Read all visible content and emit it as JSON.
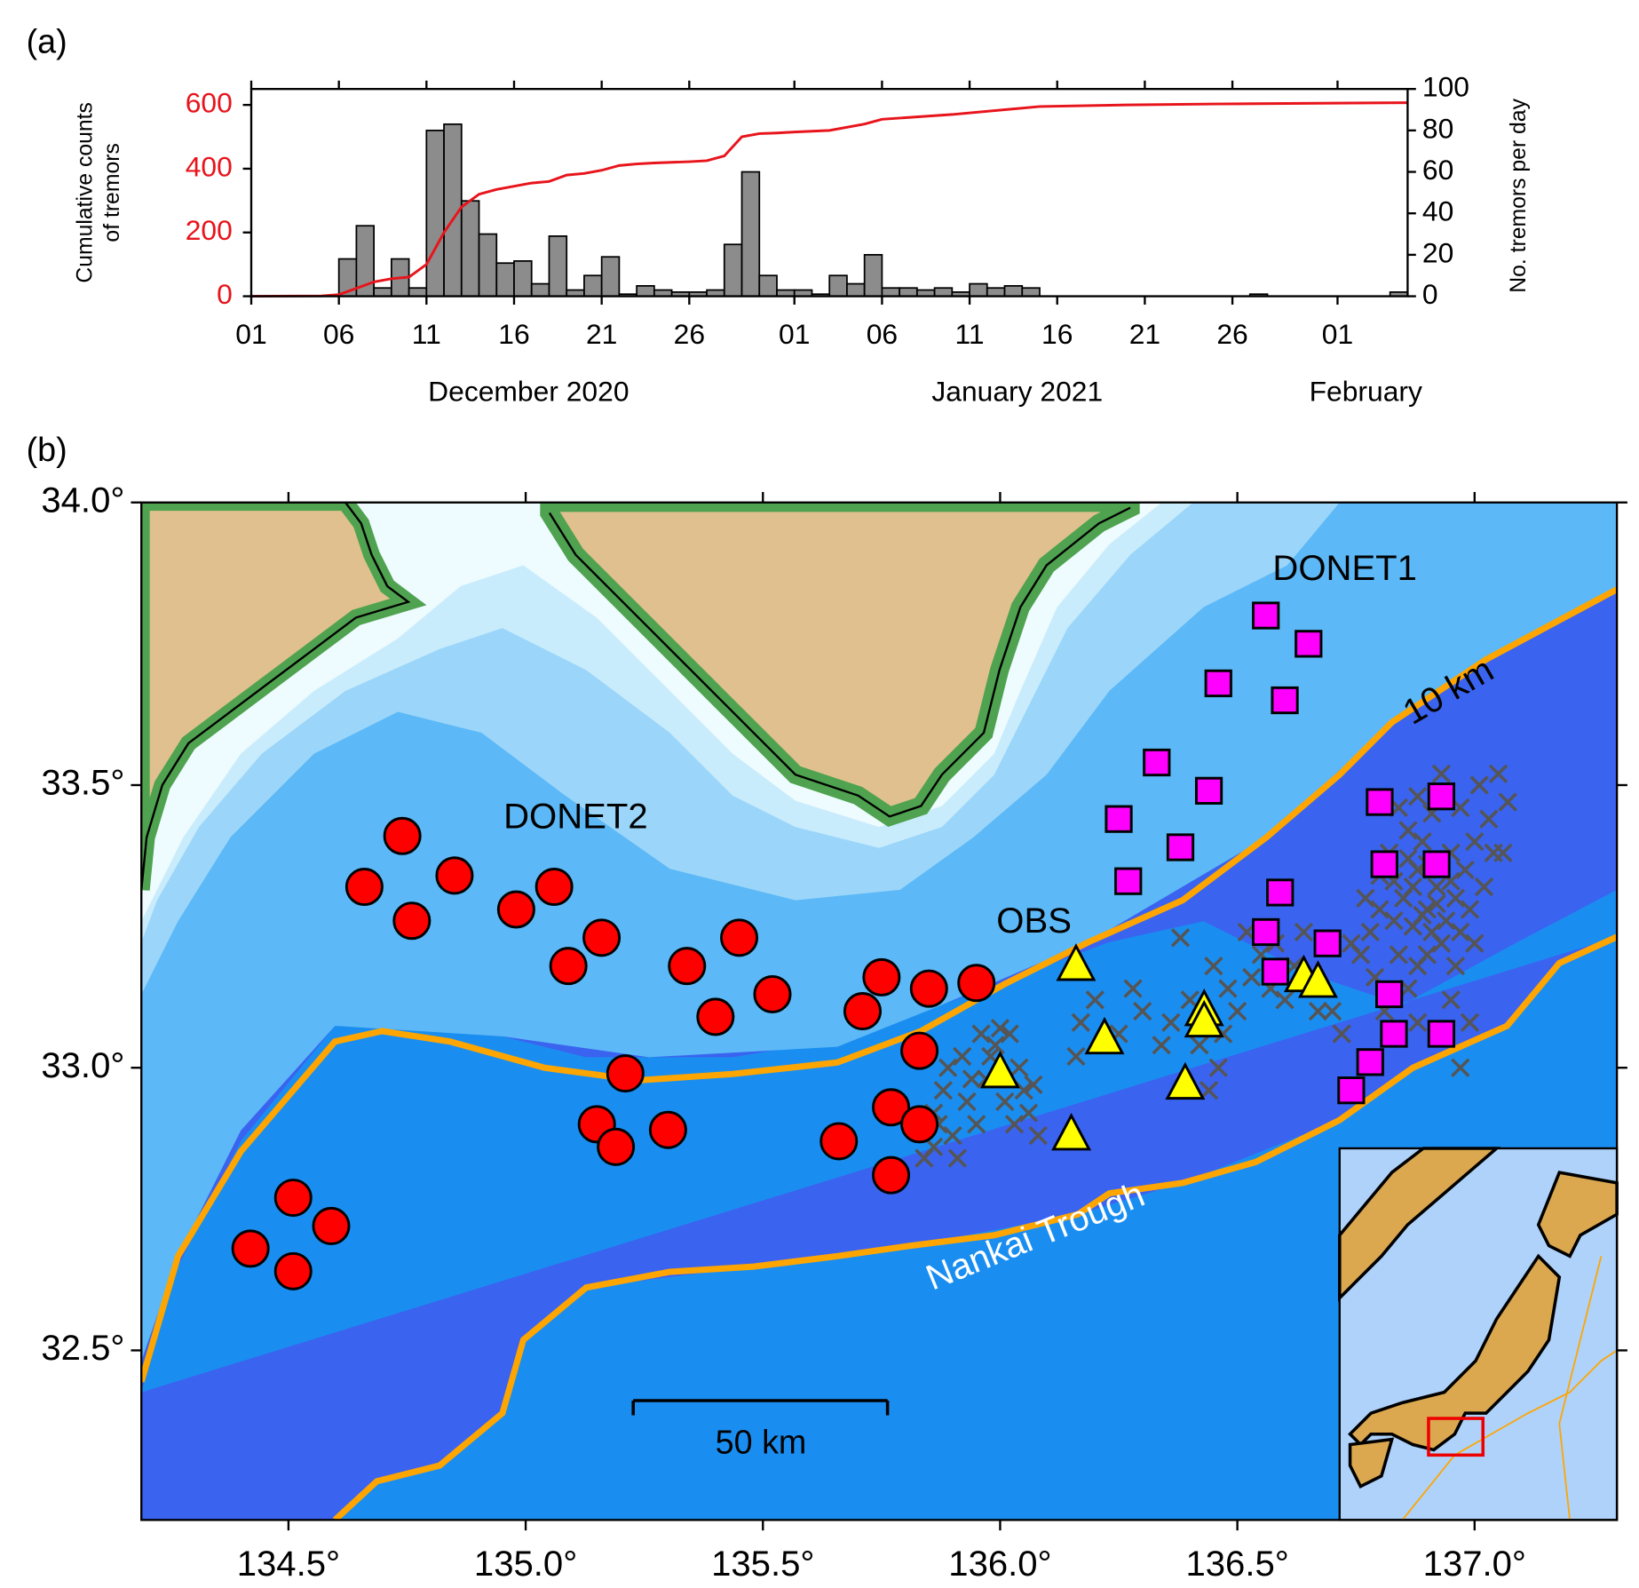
{
  "chart_data": [
    {
      "type": "histogram",
      "panel_label": "(a)",
      "ylabel_lines": [
        "Cumulative counts",
        "of tremors"
      ],
      "y2label": "No. tremors per day",
      "xlim": [
        0,
        66
      ],
      "xticks": [
        {
          "value": 0,
          "label": "01"
        },
        {
          "value": 5,
          "label": "06"
        },
        {
          "value": 10,
          "label": "11"
        },
        {
          "value": 15,
          "label": "16"
        },
        {
          "value": 20,
          "label": "21"
        },
        {
          "value": 25,
          "label": "26"
        },
        {
          "value": 31,
          "label": "01"
        },
        {
          "value": 36,
          "label": "06"
        },
        {
          "value": 41,
          "label": "11"
        },
        {
          "value": 46,
          "label": "16"
        },
        {
          "value": 51,
          "label": "21"
        },
        {
          "value": 56,
          "label": "26"
        },
        {
          "value": 62,
          "label": "01"
        }
      ],
      "month_labels": [
        "December 2020",
        "January 2021",
        "February"
      ],
      "ylim": [
        0,
        650
      ],
      "yticks": [
        0,
        200,
        400,
        600
      ],
      "ytick_color": "#e8141b",
      "y2lim": [
        0,
        100
      ],
      "y2ticks": [
        0,
        20,
        40,
        60,
        80,
        100
      ],
      "bins": [
        0,
        1,
        2,
        3,
        4,
        5,
        6,
        7,
        8,
        9,
        10,
        11,
        12,
        13,
        14,
        15,
        16,
        17,
        18,
        19,
        20,
        21,
        22,
        23,
        24,
        25,
        26,
        27,
        28,
        29,
        30,
        31,
        32,
        33,
        34,
        35,
        36,
        37,
        38,
        39,
        40,
        41,
        42,
        43,
        44,
        45,
        46,
        47,
        48,
        49,
        50,
        51,
        52,
        53,
        54,
        55,
        56,
        57,
        58,
        59,
        60,
        61,
        62,
        63,
        64,
        65,
        66
      ],
      "values": [
        0,
        0,
        0,
        0,
        0,
        18,
        34,
        4,
        18,
        4,
        80,
        83,
        46,
        30,
        16,
        17,
        6,
        29,
        3,
        10,
        19,
        1,
        5,
        3,
        2,
        2,
        3,
        25,
        60,
        10,
        3,
        3,
        1,
        10,
        6,
        20,
        4,
        4,
        3,
        4,
        2,
        6,
        4,
        5,
        4,
        0,
        0,
        0,
        0,
        0,
        0,
        0,
        0,
        0,
        0,
        0,
        0,
        1,
        0,
        0,
        0,
        0,
        0,
        0,
        0,
        2
      ],
      "axis": "y2",
      "color": "#8c8c8c",
      "line": {
        "color": "#e8141b",
        "x": [
          0,
          4,
          5,
          6,
          7,
          8,
          9,
          10,
          11,
          12,
          13,
          14,
          15,
          16,
          17,
          18,
          19,
          20,
          21,
          22,
          23,
          24,
          25,
          26,
          27,
          28,
          29,
          30,
          31,
          33,
          35,
          36,
          40,
          45,
          50,
          55,
          60,
          66
        ],
        "values": [
          0,
          1,
          5,
          25,
          45,
          55,
          60,
          100,
          200,
          280,
          320,
          335,
          345,
          355,
          360,
          380,
          385,
          395,
          410,
          415,
          418,
          420,
          422,
          425,
          440,
          500,
          510,
          512,
          515,
          520,
          540,
          555,
          570,
          595,
          600,
          603,
          605,
          607
        ]
      }
    },
    {
      "type": "scatter",
      "panel_label": "(b)",
      "xlim": [
        134.19,
        137.3
      ],
      "ylim": [
        32.2,
        34.0
      ],
      "xticks": [
        {
          "value": 134.5,
          "label": "134.5°"
        },
        {
          "value": 135.0,
          "label": "135.0°"
        },
        {
          "value": 135.5,
          "label": "135.5°"
        },
        {
          "value": 136.0,
          "label": "136.0°"
        },
        {
          "value": 136.5,
          "label": "136.5°"
        },
        {
          "value": 137.0,
          "label": "137.0°"
        }
      ],
      "yticks": [
        {
          "value": 32.5,
          "label": "32.5°"
        },
        {
          "value": 33.0,
          "label": "33.0°"
        },
        {
          "value": 33.5,
          "label": "33.5°"
        },
        {
          "value": 34.0,
          "label": "34.0°"
        }
      ],
      "annotations": [
        "10 km",
        "Nankai Trough",
        "50 km"
      ],
      "series": [
        {
          "marker": "x",
          "color": "#555555",
          "x": [
            136.85,
            136.88,
            136.9,
            136.92,
            136.95,
            136.87,
            136.93,
            136.96,
            136.89,
            136.91,
            136.86,
            136.98,
            137.0,
            136.83,
            136.8,
            136.84,
            136.88,
            136.94,
            136.97,
            136.9,
            136.92,
            136.87,
            136.95,
            136.82,
            136.78,
            136.76,
            136.74,
            136.79,
            136.86,
            136.99,
            137.02,
            137.04,
            137.03,
            136.97,
            137.01,
            136.93,
            136.88,
            136.84,
            136.9,
            136.96,
            137.0,
            136.91,
            136.89,
            136.93,
            136.86,
            136.8,
            136.77,
            136.83,
            136.81,
            136.88,
            136.95,
            136.99,
            137.05,
            137.07,
            137.06,
            136.97,
            136.7,
            136.72,
            136.62,
            136.58,
            136.55,
            136.52,
            136.48,
            136.45,
            136.4,
            136.36,
            136.42,
            136.46,
            136.5,
            136.53,
            136.6,
            136.64,
            136.67,
            136.38,
            136.3,
            136.28,
            136.25,
            136.2,
            136.17,
            136.16,
            136.34,
            136.44,
            136.47,
            136.57,
            135.86,
            135.88,
            135.9,
            135.93,
            135.95,
            135.97,
            135.99,
            136.0,
            136.02,
            136.04,
            136.01,
            136.03,
            136.06,
            136.08,
            135.92,
            135.89,
            135.86,
            135.84,
            135.91,
            135.96,
            135.98,
            136.05,
            136.07,
            135.94,
            135.87
          ],
          "values": [
            33.3,
            33.35,
            33.28,
            33.32,
            33.38,
            33.25,
            33.22,
            33.3,
            33.4,
            33.45,
            33.42,
            33.35,
            33.4,
            33.33,
            33.28,
            33.2,
            33.18,
            33.26,
            33.24,
            33.36,
            33.29,
            33.32,
            33.33,
            33.38,
            33.24,
            33.2,
            33.22,
            33.16,
            33.14,
            33.28,
            33.32,
            33.38,
            33.44,
            33.46,
            33.5,
            33.52,
            33.48,
            33.46,
            33.2,
            33.18,
            33.22,
            33.24,
            33.27,
            33.35,
            33.37,
            33.34,
            33.3,
            33.26,
            33.1,
            33.08,
            33.12,
            33.08,
            33.52,
            33.47,
            33.38,
            33.0,
            33.1,
            33.06,
            33.18,
            33.22,
            33.2,
            33.24,
            33.14,
            33.18,
            33.12,
            33.08,
            33.04,
            33.0,
            33.1,
            33.16,
            33.12,
            33.24,
            33.1,
            33.23,
            33.1,
            33.14,
            33.06,
            33.12,
            33.08,
            33.02,
            33.04,
            32.96,
            33.06,
            33.14,
            32.92,
            32.96,
            32.88,
            32.94,
            32.9,
            32.98,
            33.04,
            33.07,
            33.06,
            33.0,
            32.94,
            32.9,
            32.92,
            32.88,
            33.02,
            33.0,
            32.86,
            32.84,
            32.84,
            33.06,
            33.02,
            32.96,
            32.97,
            32.98,
            32.9
          ]
        },
        {
          "label": "DONET2",
          "marker": "circle",
          "color": "#ff0000",
          "x": [
            134.74,
            134.66,
            134.85,
            134.76,
            134.98,
            135.06,
            135.09,
            135.16,
            135.34,
            135.45,
            135.4,
            135.52,
            135.21,
            135.15,
            135.19,
            135.3,
            135.75,
            135.71,
            135.85,
            135.95,
            135.83,
            135.77,
            135.83,
            135.66,
            135.77,
            134.51,
            134.59,
            134.42,
            134.51
          ],
          "values": [
            33.41,
            33.32,
            33.34,
            33.26,
            33.28,
            33.32,
            33.18,
            33.23,
            33.18,
            33.23,
            33.09,
            33.13,
            32.99,
            32.9,
            32.86,
            32.89,
            33.16,
            33.1,
            33.14,
            33.15,
            33.03,
            32.93,
            32.9,
            32.87,
            32.81,
            32.77,
            32.72,
            32.68,
            32.64
          ]
        },
        {
          "label": "DONET1",
          "marker": "square",
          "color": "#ff00ff",
          "x": [
            136.56,
            136.65,
            136.46,
            136.6,
            136.33,
            136.44,
            136.25,
            136.38,
            136.27,
            136.8,
            136.93,
            136.81,
            136.92,
            136.59,
            136.56,
            136.69,
            136.58,
            136.82,
            136.83,
            136.93,
            136.78,
            136.74
          ],
          "values": [
            33.8,
            33.75,
            33.68,
            33.65,
            33.54,
            33.49,
            33.44,
            33.39,
            33.33,
            33.47,
            33.48,
            33.36,
            33.36,
            33.31,
            33.24,
            33.22,
            33.17,
            33.13,
            33.06,
            33.06,
            33.01,
            32.96
          ]
        },
        {
          "label": "OBS",
          "marker": "triangle",
          "color": "#ffff00",
          "x": [
            136.16,
            136.22,
            136.0,
            136.15,
            136.39,
            136.43,
            136.43,
            136.64,
            136.67
          ],
          "values": [
            33.18,
            33.05,
            32.99,
            32.88,
            32.97,
            33.1,
            33.08,
            33.16,
            33.15
          ]
        }
      ]
    }
  ]
}
